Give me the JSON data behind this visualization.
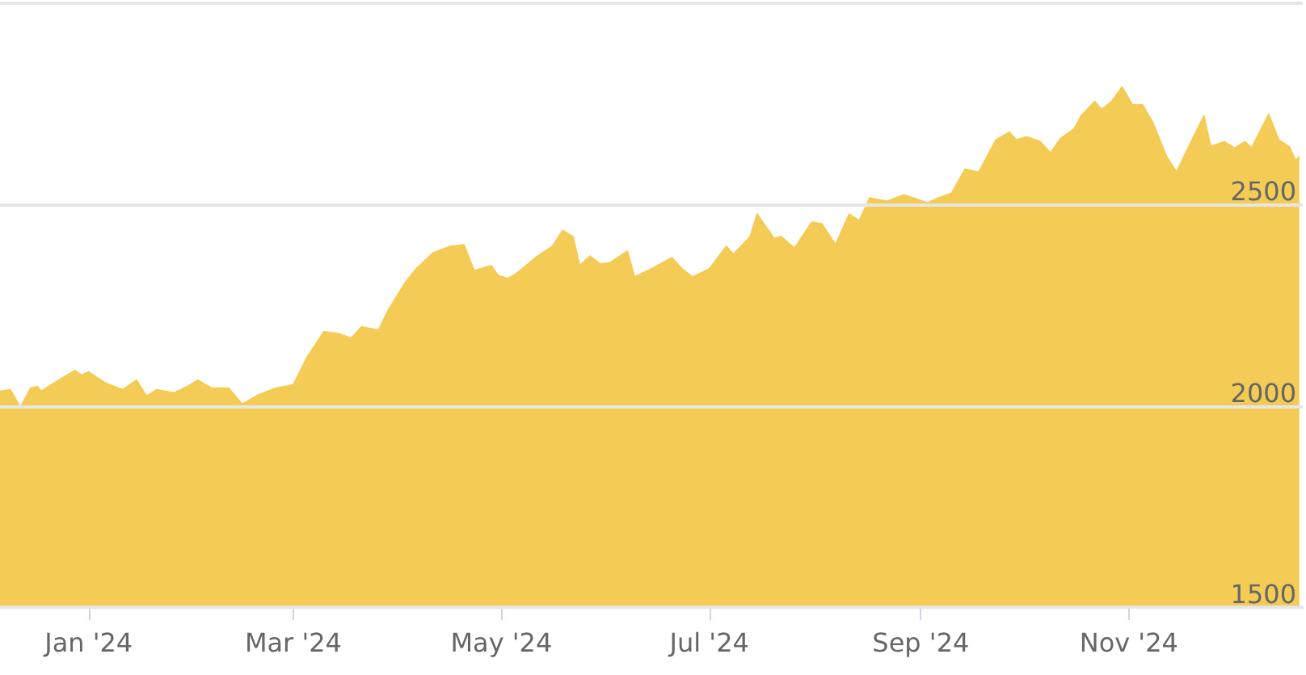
{
  "chart_data": {
    "type": "area",
    "x": [
      "2023-12-06",
      "2023-12-09",
      "2023-12-12",
      "2023-12-15",
      "2023-12-17",
      "2023-12-18",
      "2023-12-21",
      "2023-12-24",
      "2023-12-28",
      "2023-12-30",
      "2024-01-01",
      "2024-01-06",
      "2024-01-11",
      "2024-01-15",
      "2024-01-18",
      "2024-01-21",
      "2024-01-26",
      "2024-01-30",
      "2024-02-02",
      "2024-02-06",
      "2024-02-11",
      "2024-02-15",
      "2024-02-20",
      "2024-02-25",
      "2024-03-01",
      "2024-03-05",
      "2024-03-10",
      "2024-03-14",
      "2024-03-18",
      "2024-03-21",
      "2024-03-26",
      "2024-03-29",
      "2024-04-03",
      "2024-04-06",
      "2024-04-11",
      "2024-04-16",
      "2024-04-20",
      "2024-04-23",
      "2024-04-28",
      "2024-04-30",
      "2024-05-03",
      "2024-05-06",
      "2024-05-11",
      "2024-05-16",
      "2024-05-19",
      "2024-05-22",
      "2024-05-24",
      "2024-05-27",
      "2024-05-30",
      "2024-06-02",
      "2024-06-07",
      "2024-06-09",
      "2024-06-14",
      "2024-06-20",
      "2024-06-23",
      "2024-06-26",
      "2024-07-01",
      "2024-07-06",
      "2024-07-08",
      "2024-07-13",
      "2024-07-15",
      "2024-07-20",
      "2024-07-22",
      "2024-07-26",
      "2024-07-31",
      "2024-08-03",
      "2024-08-07",
      "2024-08-11",
      "2024-08-14",
      "2024-08-17",
      "2024-08-22",
      "2024-08-27",
      "2024-08-30",
      "2024-09-03",
      "2024-09-06",
      "2024-09-10",
      "2024-09-14",
      "2024-09-18",
      "2024-09-23",
      "2024-09-27",
      "2024-09-29",
      "2024-10-02",
      "2024-10-06",
      "2024-10-09",
      "2024-10-12",
      "2024-10-16",
      "2024-10-18",
      "2024-10-22",
      "2024-10-24",
      "2024-10-27",
      "2024-10-30",
      "2024-11-02",
      "2024-11-05",
      "2024-11-08",
      "2024-11-12",
      "2024-11-15",
      "2024-11-17",
      "2024-11-20",
      "2024-11-23",
      "2024-11-25",
      "2024-11-29",
      "2024-12-02",
      "2024-12-05",
      "2024-12-07",
      "2024-12-12",
      "2024-12-15",
      "2024-12-18",
      "2024-12-20",
      "2024-12-21"
    ],
    "series": [
      {
        "color": "#f4cb55",
        "values": [
          2036,
          2040,
          1996,
          2044,
          2048,
          2036,
          2052,
          2068,
          2088,
          2076,
          2084,
          2056,
          2040,
          2064,
          2024,
          2040,
          2032,
          2048,
          2064,
          2044,
          2044,
          2004,
          2028,
          2044,
          2052,
          2120,
          2184,
          2180,
          2168,
          2196,
          2188,
          2240,
          2308,
          2340,
          2380,
          2396,
          2400,
          2336,
          2348,
          2324,
          2316,
          2332,
          2368,
          2396,
          2436,
          2420,
          2348,
          2372,
          2352,
          2356,
          2384,
          2320,
          2340,
          2368,
          2340,
          2320,
          2340,
          2396,
          2376,
          2420,
          2476,
          2416,
          2420,
          2392,
          2456,
          2452,
          2400,
          2476,
          2460,
          2516,
          2508,
          2524,
          2516,
          2504,
          2516,
          2528,
          2588,
          2580,
          2660,
          2680,
          2660,
          2668,
          2656,
          2628,
          2664,
          2688,
          2720,
          2756,
          2736,
          2756,
          2792,
          2748,
          2748,
          2704,
          2620,
          2580,
          2616,
          2668,
          2720,
          2644,
          2656,
          2640,
          2656,
          2640,
          2724,
          2660,
          2644,
          2608,
          2620
        ]
      }
    ],
    "xlim": [
      "2023-12-06",
      "2024-12-22"
    ],
    "xticks": [
      {
        "value": "2024-01-01",
        "label": "Jan '24"
      },
      {
        "value": "2024-03-01",
        "label": "Mar '24"
      },
      {
        "value": "2024-05-01",
        "label": "May '24"
      },
      {
        "value": "2024-07-01",
        "label": "Jul '24"
      },
      {
        "value": "2024-09-01",
        "label": "Sep '24"
      },
      {
        "value": "2024-11-01",
        "label": "Nov '24"
      }
    ],
    "ylim": [
      1500,
      3000
    ],
    "yticks": [
      1500,
      2000,
      2500,
      {
        "value": 3000,
        "label": null
      }
    ],
    "grid": "y"
  }
}
